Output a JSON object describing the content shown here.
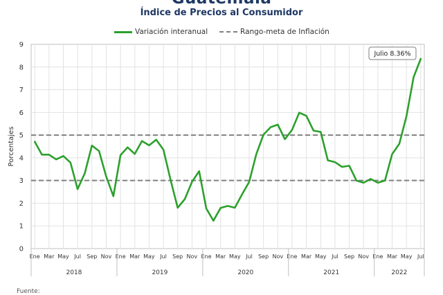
{
  "header": {
    "title": "Guatemala",
    "subtitle": "Índice de Precios al Consumidor"
  },
  "footer": {
    "source": "Fuente:"
  },
  "colors": {
    "series": "#2ca02c",
    "reference": "#808080",
    "title": "#1f3864"
  },
  "chart_data": {
    "type": "line",
    "title": "Guatemala",
    "subtitle": "Índice de Precios al Consumidor",
    "ylabel": "Porcentajes",
    "ylim": [
      0,
      9
    ],
    "yticks": [
      0,
      1,
      2,
      3,
      4,
      5,
      6,
      7,
      8,
      9
    ],
    "grid": true,
    "legend_position": "top-center",
    "month_labels": [
      "Ene",
      "Mar",
      "May",
      "Jul",
      "Sep",
      "Nov"
    ],
    "years": [
      "2018",
      "2019",
      "2020",
      "2021",
      "2022"
    ],
    "series": [
      {
        "name": "Variación interanual",
        "x": [
          "2018-01",
          "2018-02",
          "2018-03",
          "2018-04",
          "2018-05",
          "2018-06",
          "2018-07",
          "2018-08",
          "2018-09",
          "2018-10",
          "2018-11",
          "2018-12",
          "2019-01",
          "2019-02",
          "2019-03",
          "2019-04",
          "2019-05",
          "2019-06",
          "2019-07",
          "2019-08",
          "2019-09",
          "2019-10",
          "2019-11",
          "2019-12",
          "2020-01",
          "2020-02",
          "2020-03",
          "2020-04",
          "2020-05",
          "2020-06",
          "2020-07",
          "2020-08",
          "2020-09",
          "2020-10",
          "2020-11",
          "2020-12",
          "2021-01",
          "2021-02",
          "2021-03",
          "2021-04",
          "2021-05",
          "2021-06",
          "2021-07",
          "2021-08",
          "2021-09",
          "2021-10",
          "2021-11",
          "2021-12",
          "2022-01",
          "2022-02",
          "2022-03",
          "2022-04",
          "2022-05",
          "2022-06",
          "2022-07"
        ],
        "values": [
          4.71,
          4.14,
          4.14,
          3.93,
          4.08,
          3.79,
          2.62,
          3.32,
          4.54,
          4.3,
          3.18,
          2.31,
          4.12,
          4.46,
          4.17,
          4.74,
          4.55,
          4.8,
          4.36,
          3.03,
          1.8,
          2.18,
          2.94,
          3.41,
          1.77,
          1.23,
          1.79,
          1.88,
          1.8,
          2.39,
          2.94,
          4.16,
          5.02,
          5.35,
          5.46,
          4.82,
          5.23,
          5.99,
          5.85,
          5.2,
          5.14,
          3.89,
          3.81,
          3.6,
          3.65,
          3.0,
          2.9,
          3.07,
          2.9,
          3.0,
          4.16,
          4.62,
          5.83,
          7.55,
          8.36
        ]
      },
      {
        "name": "Rango-meta de Inflación",
        "style": "dashed",
        "values": [
          3,
          5
        ]
      }
    ],
    "annotations": [
      {
        "text": "Julio 8.36%",
        "x": "2022-07",
        "y": 8.36
      }
    ]
  }
}
